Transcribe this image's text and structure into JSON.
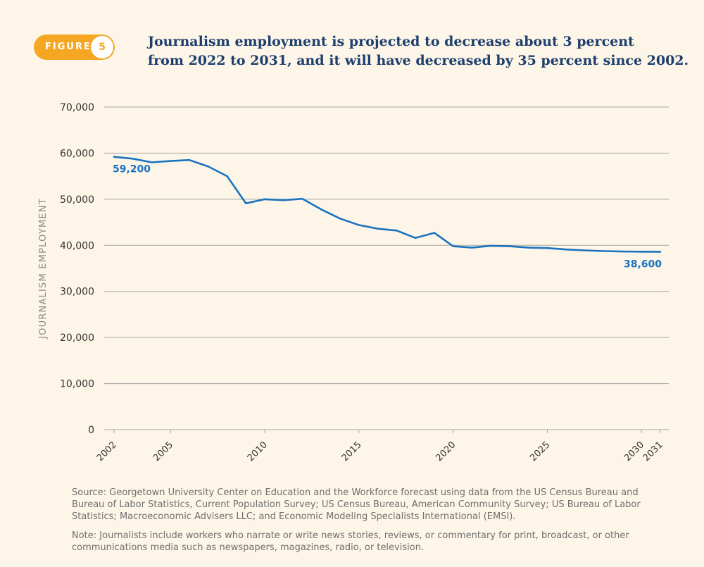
{
  "figure": {
    "label": "FIGURE",
    "number": "5"
  },
  "title": {
    "line1": "Journalism employment is projected to decrease about 3 percent",
    "line2": "from 2022 to 2031, and it will have decreased by 35 percent since 2002."
  },
  "footer": {
    "source": "Source: Georgetown University Center on Education and the Workforce forecast using data from the US Census Bureau and Bureau of Labor Statistics, Current Population Survey; US Census Bureau, American Community Survey; US Bureau of Labor Statistics; Macroeconomic Advisers LLC; and Economic Modeling Specialists International (EMSI).",
    "note": "Note: Journalists include workers who narrate or write news stories, reviews, or commentary for print, broadcast, or other communications media such as newspapers, magazines, radio, or television."
  },
  "colors": {
    "line": "#1a73c0",
    "grid": "#a6a6a6",
    "axis_text": "#333333",
    "ylabel": "#8a8a8a"
  },
  "chart_data": {
    "type": "line",
    "title": "Journalism employment is projected to decrease about 3 percent from 2022 to 2031, and it will have decreased by 35 percent since 2002.",
    "xlabel": "",
    "ylabel": "JOURNALISM EMPLOYMENT",
    "ylim": [
      0,
      70000
    ],
    "yticks": [
      0,
      10000,
      20000,
      30000,
      40000,
      50000,
      60000,
      70000
    ],
    "ytick_labels": [
      "0",
      "10,000",
      "20,000",
      "30,000",
      "40,000",
      "50,000",
      "60,000",
      "70,000"
    ],
    "xlim": [
      2002,
      2031
    ],
    "xticks": [
      2002,
      2005,
      2010,
      2015,
      2020,
      2025,
      2030,
      2031
    ],
    "xtick_labels": [
      "2002",
      "2005",
      "2010",
      "2015",
      "2020",
      "2025",
      "2030",
      "2031"
    ],
    "grid": true,
    "series": [
      {
        "name": "Journalism employment",
        "x": [
          2002,
          2003,
          2004,
          2005,
          2006,
          2007,
          2008,
          2009,
          2010,
          2011,
          2012,
          2013,
          2014,
          2015,
          2016,
          2017,
          2018,
          2019,
          2020,
          2021,
          2022,
          2023,
          2024,
          2025,
          2026,
          2027,
          2028,
          2029,
          2030,
          2031
        ],
        "values": [
          59200,
          58800,
          58000,
          58300,
          58500,
          57100,
          55000,
          49100,
          50000,
          49800,
          50100,
          47800,
          45800,
          44400,
          43600,
          43200,
          41600,
          42700,
          39800,
          39500,
          39900,
          39800,
          39500,
          39400,
          39100,
          38900,
          38750,
          38650,
          38620,
          38600
        ]
      }
    ],
    "annotations": [
      {
        "x": 2002,
        "y": 59200,
        "text": "59,200"
      },
      {
        "x": 2031,
        "y": 38600,
        "text": "38,600"
      }
    ]
  }
}
